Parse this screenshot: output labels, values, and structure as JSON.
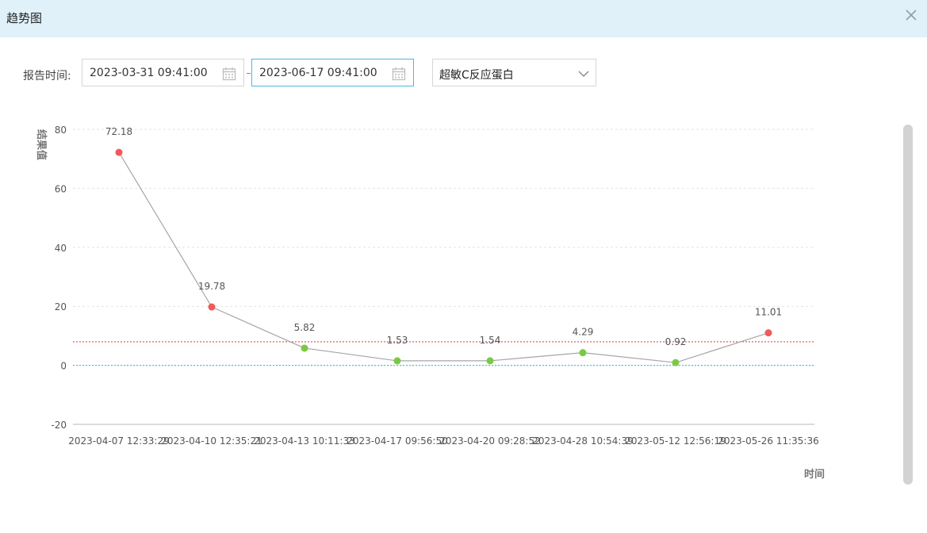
{
  "dialog": {
    "title": "趋势图"
  },
  "filters": {
    "label": "报告时间:",
    "start": "2023-03-31 09:41:00",
    "end": "2023-06-17 09:41:00",
    "item": "超敏C反应蛋白"
  },
  "colors": {
    "line": "#a6a6a6",
    "high": "#f05a5a",
    "normal": "#7ac943",
    "upper_limit": "#f05a5a",
    "lower_limit": "#4cc4d8"
  },
  "chart_data": {
    "type": "line",
    "xlabel": "时间",
    "ylabel": "结果值",
    "ylim": [
      -20,
      80
    ],
    "yticks": [
      -20,
      0,
      20,
      40,
      60,
      80
    ],
    "grid": "horizontal dashed",
    "x": [
      "2023-04-07 12:33:29",
      "2023-04-10 12:35:21",
      "2023-04-13 10:11:33",
      "2023-04-17 09:56:50",
      "2023-04-20 09:28:52",
      "2023-04-28 10:54:39",
      "2023-05-12 12:56:19",
      "2023-05-26 11:35:36"
    ],
    "series": [
      {
        "values": [
          72.18,
          19.78,
          5.82,
          1.53,
          1.54,
          4.29,
          0.92,
          11.01
        ]
      }
    ],
    "reference_lines": [
      {
        "value": 8,
        "color": "#f05a5a",
        "style": "dotted"
      },
      {
        "value": 0,
        "color": "#4cc4d8",
        "style": "dotted"
      }
    ]
  }
}
